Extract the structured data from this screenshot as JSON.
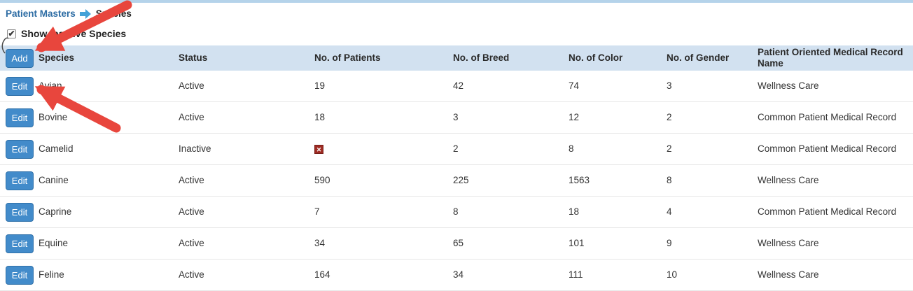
{
  "breadcrumb": {
    "parent": "Patient Masters",
    "separator_icon": "arrow-right-icon",
    "current": "Species"
  },
  "filter": {
    "label": "Show Inactive Species",
    "checked": true,
    "check_glyph": "✔"
  },
  "table": {
    "add_button_label": "Add",
    "edit_button_label": "Edit",
    "columns": [
      "Species",
      "Status",
      "No. of Patients",
      "No. of Breed",
      "No. of Color",
      "No. of Gender",
      "Patient Oriented Medical Record Name"
    ],
    "rows": [
      {
        "species": "Avian",
        "status": "Active",
        "patients": "19",
        "breed": "42",
        "color": "74",
        "gender": "3",
        "pomr": "Wellness Care"
      },
      {
        "species": "Bovine",
        "status": "Active",
        "patients": "18",
        "breed": "3",
        "color": "12",
        "gender": "2",
        "pomr": "Common Patient Medical Record"
      },
      {
        "species": "Camelid",
        "status": "Inactive",
        "patients": "",
        "patients_icon": "missing-image-x-icon",
        "patients_icon_glyph": "✕",
        "breed": "2",
        "color": "8",
        "gender": "2",
        "pomr": "Common Patient Medical Record"
      },
      {
        "species": "Canine",
        "status": "Active",
        "patients": "590",
        "breed": "225",
        "color": "1563",
        "gender": "8",
        "pomr": "Wellness Care"
      },
      {
        "species": "Caprine",
        "status": "Active",
        "patients": "7",
        "breed": "8",
        "color": "18",
        "gender": "4",
        "pomr": "Common Patient Medical Record"
      },
      {
        "species": "Equine",
        "status": "Active",
        "patients": "34",
        "breed": "65",
        "color": "101",
        "gender": "9",
        "pomr": "Wellness Care"
      },
      {
        "species": "Feline",
        "status": "Active",
        "patients": "164",
        "breed": "34",
        "color": "111",
        "gender": "10",
        "pomr": "Wellness Care"
      }
    ]
  },
  "annotations": {
    "description": "Two hand-drawn red arrows: one pointing at the Add button, one pointing at the Avian row Edit button",
    "arrow_color": "#e8463d"
  },
  "colors": {
    "header_bg": "#d2e1f0",
    "top_strip": "#b5d3ea",
    "button_blue": "#428bca",
    "button_border": "#3071a9",
    "breadcrumb_link": "#2e6da4",
    "breadcrumb_arrow": "#44a2d8",
    "row_divider": "#e7e7e7",
    "text": "#333333",
    "missing_icon_red": "#9e2b23",
    "status_active": "Active",
    "status_inactive": "Inactive"
  }
}
